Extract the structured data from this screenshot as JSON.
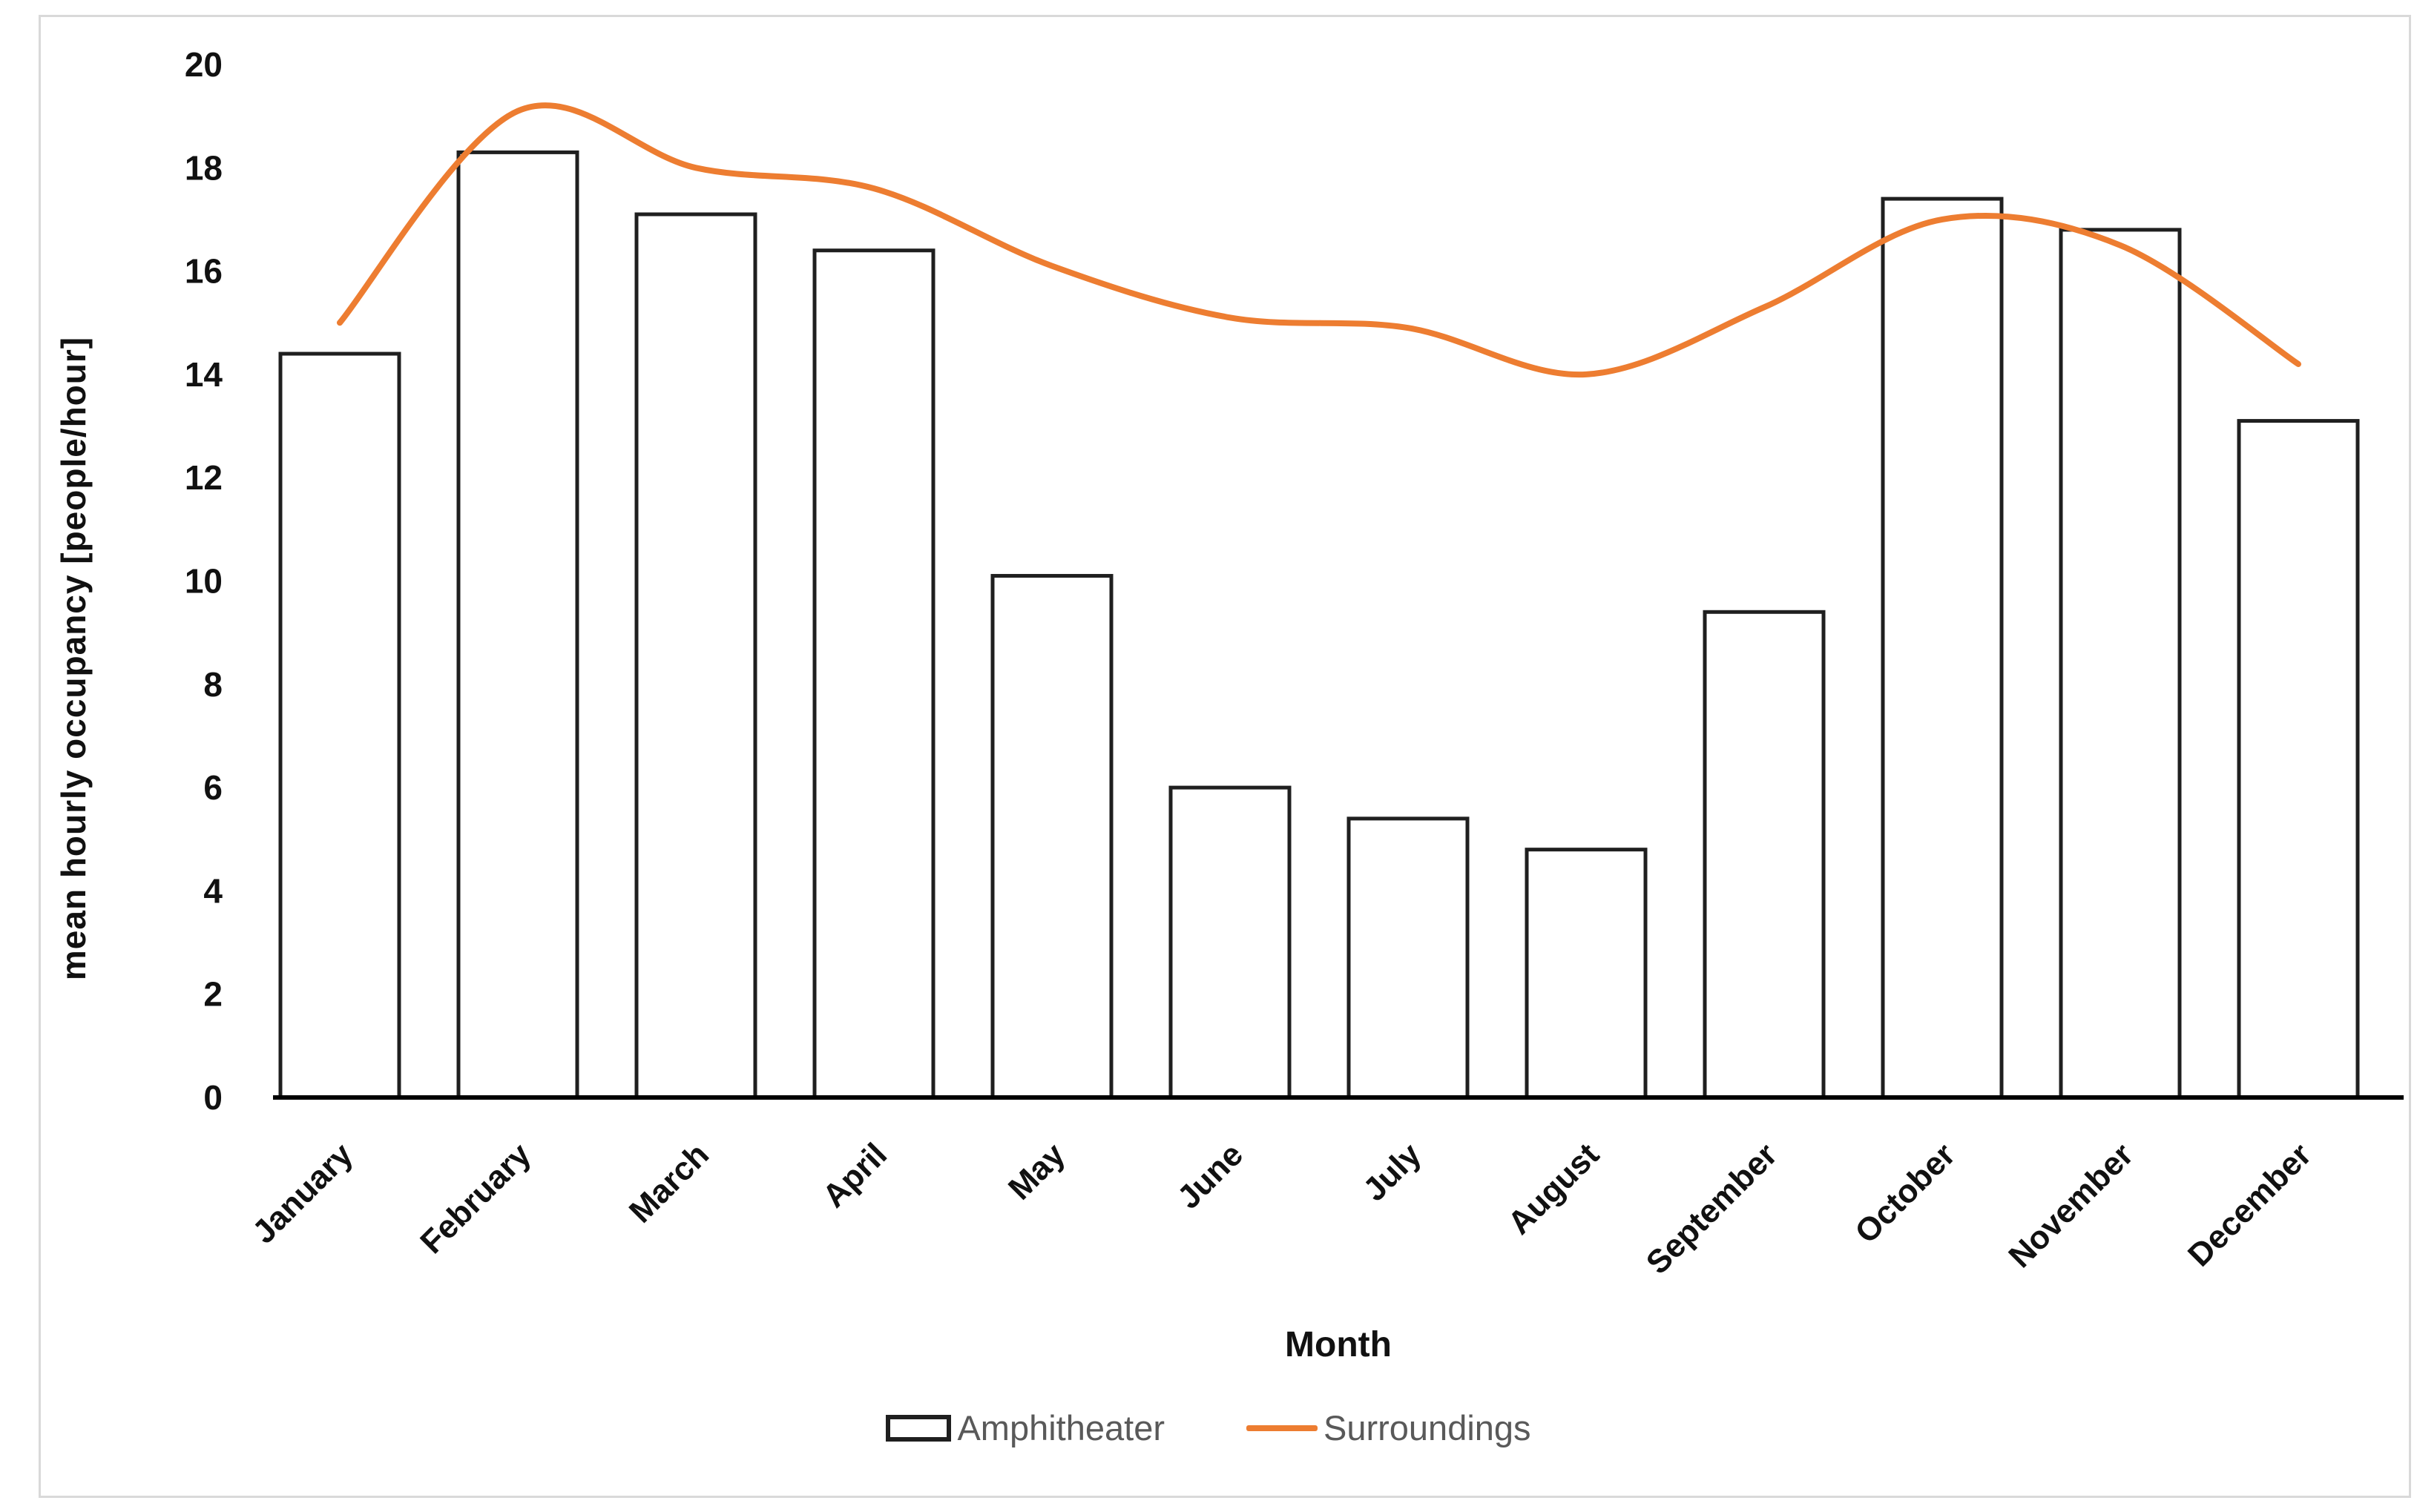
{
  "figure": {
    "background": "#ffffff",
    "frame_color": "#d9d9d9"
  },
  "chart_data": {
    "type": "bar",
    "categories": [
      "January",
      "February",
      "March",
      "April",
      "May",
      "June",
      "July",
      "August",
      "September",
      "October",
      "November",
      "December"
    ],
    "series": [
      {
        "name": "Amphitheater",
        "type": "bar",
        "values": [
          14.4,
          18.3,
          17.1,
          16.4,
          10.1,
          6.0,
          5.4,
          4.8,
          9.4,
          17.4,
          16.8,
          13.1
        ],
        "fill": "#ffffff",
        "stroke": "#1f1f1f"
      },
      {
        "name": "Surroundings",
        "type": "line",
        "smooth": true,
        "values": [
          15.0,
          19.1,
          18.0,
          17.6,
          16.1,
          15.1,
          14.9,
          14.0,
          15.3,
          17.0,
          16.5,
          14.2
        ],
        "color": "#ED7D31"
      }
    ],
    "title": "",
    "xlabel": "Month",
    "ylabel": "mean hourly occupancy [people/hour]",
    "ylim": [
      0,
      20
    ],
    "yticks": [
      0,
      2,
      4,
      6,
      8,
      10,
      12,
      14,
      16,
      18,
      20
    ],
    "grid": false,
    "legend_position": "bottom",
    "axis_color": "#000000",
    "tick_label_color": "#111111"
  },
  "legend": {
    "text_color": "#595959"
  }
}
